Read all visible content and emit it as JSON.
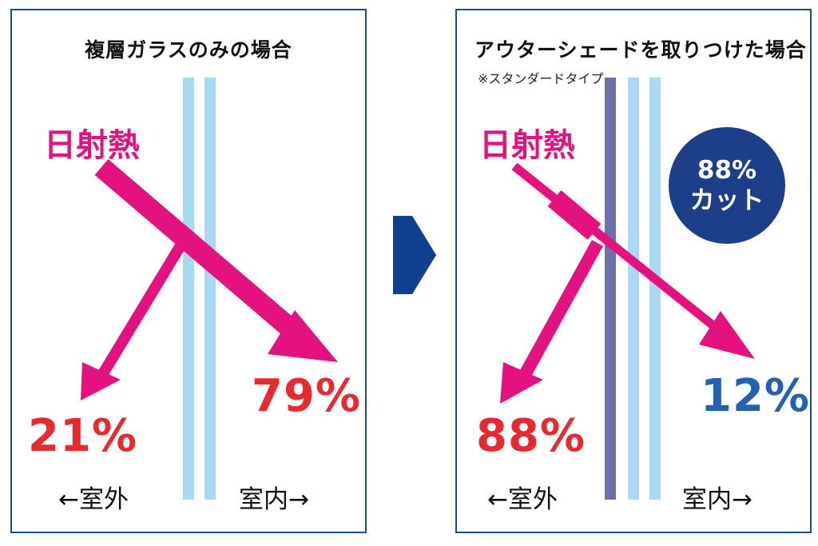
{
  "left_panel": {
    "title": "複層ガラスのみの場合",
    "heat_label": "日射熱",
    "reflect_pct": "21%",
    "transmit_pct": "79%",
    "outside_label": "←室外",
    "inside_label": "室内→"
  },
  "right_panel": {
    "title": "アウターシェードを取りつけた場合",
    "subtitle": "※スタンダードタイプ",
    "heat_label": "日射熱",
    "reflect_pct": "88%",
    "transmit_pct": "12%",
    "badge_line1": "88%",
    "badge_line2": "カット",
    "outside_label": "←室外",
    "inside_label": "室内→"
  },
  "colors": {
    "arrow": "#e3127f",
    "glass": "#a9d8f2",
    "shade": "#6c72a8",
    "border": "#1d4b91",
    "badge": "#1d3f8a",
    "pct_red": "#e52b2f",
    "pct_blue": "#2160b2",
    "next_arrow": "#113f8f"
  }
}
